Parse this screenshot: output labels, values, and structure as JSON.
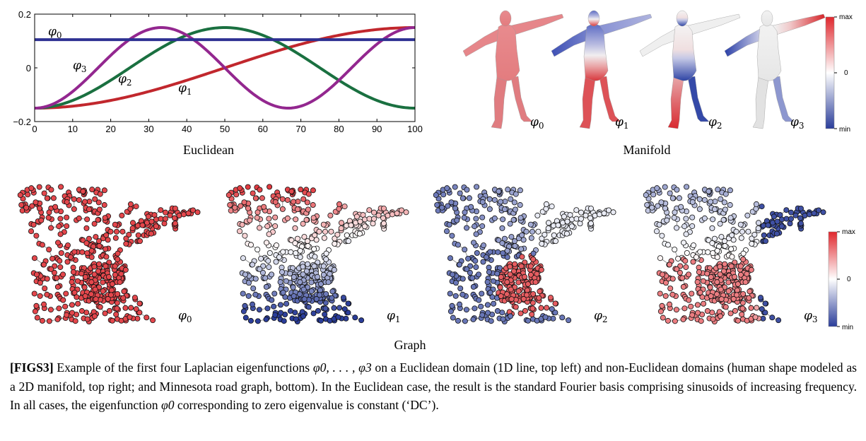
{
  "euclidean": {
    "panel_title": "Euclidean",
    "chart_data": {
      "type": "line",
      "xlim": [
        0,
        100
      ],
      "ylim": [
        -0.2,
        0.2
      ],
      "x_ticks": [
        "0",
        "10",
        "20",
        "30",
        "40",
        "50",
        "60",
        "70",
        "80",
        "90",
        "100"
      ],
      "y_ticks": [
        "0.2",
        "0",
        "−0.2"
      ],
      "series": [
        {
          "name": "φ0",
          "color": "#2e3192",
          "formula": "constant",
          "values_at_x": {
            "0": 0.105,
            "100": 0.105
          }
        },
        {
          "name": "φ1",
          "color": "#c1272d",
          "period": "half",
          "values_at_x": {
            "0": -0.15,
            "50": 0.0,
            "100": 0.15
          }
        },
        {
          "name": "φ2",
          "color": "#1a7040",
          "period": "one",
          "values_at_x": {
            "0": -0.15,
            "50": 0.15,
            "100": -0.15
          }
        },
        {
          "name": "φ3",
          "color": "#93278f",
          "period": "three-halves",
          "values_at_x": {
            "0": -0.15,
            "33": 0.15,
            "67": -0.15,
            "100": 0.15
          }
        }
      ],
      "labels": [
        "φ0",
        "φ3",
        "φ2",
        "φ1"
      ]
    }
  },
  "manifold": {
    "panel_title": "Manifold",
    "shape_labels": [
      "φ0",
      "φ1",
      "φ2",
      "φ3"
    ],
    "colorbar": {
      "max": "max",
      "mid": "0",
      "min": "min"
    }
  },
  "graph": {
    "panel_title": "Graph",
    "map_labels": [
      "φ0",
      "φ1",
      "φ2",
      "φ3"
    ],
    "colorbar": {
      "max": "max",
      "mid": "0",
      "min": "min"
    }
  },
  "caption": {
    "tag": "[FIGS3]",
    "text_1": " Example of the first four Laplacian eigenfunctions ",
    "math_1": "φ0, . . . , φ3",
    "text_2": " on a Euclidean domain (1D line, top left) and non-Euclidean domains (human shape modeled as a 2D manifold, top right; and Minnesota road graph, bottom). In the Euclidean case, the result is the standard Fourier basis comprising sinusoids of increasing frequency. In all cases, the eigenfunction ",
    "math_2": "φ0",
    "text_3": " corresponding to zero eigenvalue is constant (‘DC’)."
  },
  "colors": {
    "red": "#e0272d",
    "blue": "#2a3d9a",
    "white": "#ffffff"
  }
}
